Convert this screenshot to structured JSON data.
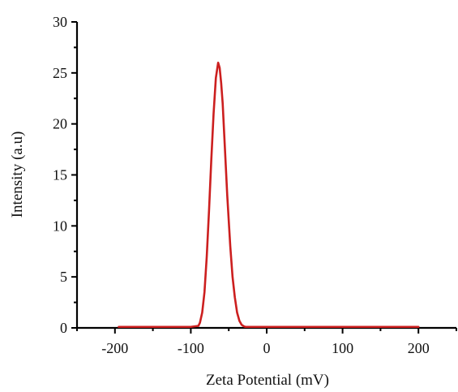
{
  "chart_data": {
    "type": "line",
    "title": "",
    "xlabel": "Zeta Potential (mV)",
    "ylabel": "Intensity (a.u)",
    "xlim": [
      -250,
      250
    ],
    "ylim": [
      0,
      30
    ],
    "x_ticks": [
      -200,
      -100,
      0,
      100,
      200
    ],
    "x_tick_labels": [
      "-200",
      "-100",
      "0",
      "100",
      "200"
    ],
    "y_ticks": [
      0,
      5,
      10,
      15,
      20,
      25,
      30
    ],
    "y_tick_labels": [
      "0",
      "5",
      "10",
      "15",
      "20",
      "25",
      "30"
    ],
    "grid": false,
    "legend": "none",
    "series": [
      {
        "color": "#cc1f1f",
        "x": [
          -195,
          -150,
          -100,
          -90,
          -88,
          -85,
          -82,
          -79,
          -76,
          -73,
          -70,
          -67,
          -64,
          -62,
          -60,
          -58,
          -56,
          -54,
          -52,
          -50,
          -48,
          -45,
          -42,
          -39,
          -36,
          -33,
          -30,
          -28,
          0,
          100,
          200
        ],
        "y": [
          0.1,
          0.1,
          0.1,
          0.2,
          0.5,
          1.5,
          3.5,
          7.0,
          11.5,
          16.5,
          21.0,
          24.5,
          26.0,
          25.5,
          24.0,
          22.0,
          19.0,
          16.0,
          13.0,
          10.5,
          8.0,
          5.0,
          3.0,
          1.5,
          0.7,
          0.3,
          0.15,
          0.1,
          0.1,
          0.1,
          0.1
        ]
      }
    ]
  }
}
